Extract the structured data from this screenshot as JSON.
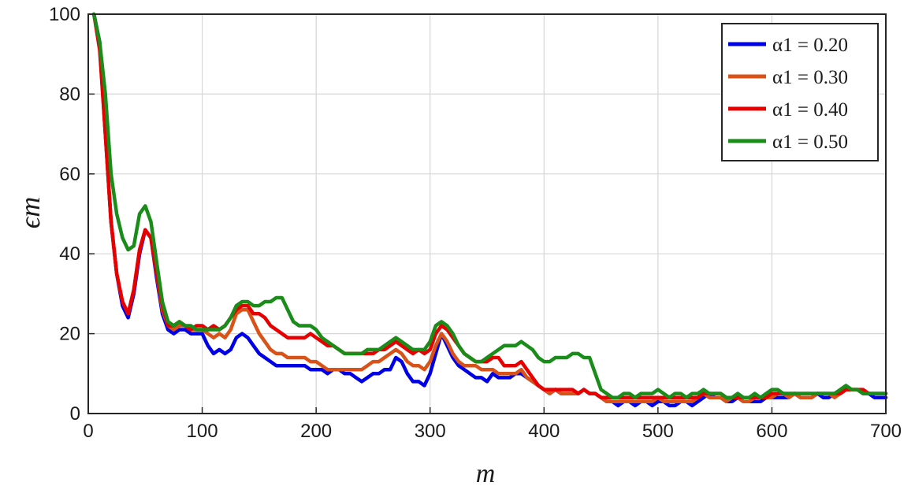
{
  "chart_data": {
    "type": "line",
    "xlabel": "m",
    "ylabel": "ϵm",
    "xlim": [
      0,
      700
    ],
    "ylim": [
      0,
      100
    ],
    "xticks": [
      0,
      100,
      200,
      300,
      400,
      500,
      600,
      700
    ],
    "yticks": [
      0,
      20,
      40,
      60,
      80,
      100
    ],
    "grid": true,
    "legend_position": "top-right",
    "series": [
      {
        "name": "α1 = 0.20",
        "color": "#0000e6",
        "x": [
          5,
          10,
          15,
          20,
          25,
          30,
          35,
          40,
          45,
          50,
          55,
          60,
          65,
          70,
          75,
          80,
          85,
          90,
          95,
          100,
          105,
          110,
          115,
          120,
          125,
          130,
          135,
          140,
          145,
          150,
          155,
          160,
          165,
          170,
          175,
          180,
          185,
          190,
          195,
          200,
          205,
          210,
          215,
          220,
          225,
          230,
          235,
          240,
          245,
          250,
          255,
          260,
          265,
          270,
          275,
          280,
          285,
          290,
          295,
          300,
          305,
          310,
          315,
          320,
          325,
          330,
          335,
          340,
          345,
          350,
          355,
          360,
          365,
          370,
          375,
          380,
          385,
          390,
          395,
          400,
          405,
          410,
          415,
          420,
          425,
          430,
          435,
          440,
          445,
          450,
          455,
          460,
          465,
          470,
          475,
          480,
          485,
          490,
          495,
          500,
          505,
          510,
          515,
          520,
          525,
          530,
          535,
          540,
          545,
          550,
          555,
          560,
          565,
          570,
          575,
          580,
          585,
          590,
          595,
          600,
          605,
          610,
          615,
          620,
          625,
          630,
          635,
          640,
          645,
          650,
          655,
          660,
          665,
          670,
          675,
          680,
          685,
          690,
          695,
          700
        ],
        "values": [
          100,
          93,
          70,
          48,
          35,
          27,
          24,
          30,
          40,
          46,
          44,
          34,
          25,
          21,
          20,
          21,
          21,
          20,
          20,
          20,
          17,
          15,
          16,
          15,
          16,
          19,
          20,
          19,
          17,
          15,
          14,
          13,
          12,
          12,
          12,
          12,
          12,
          12,
          11,
          11,
          11,
          10,
          11,
          11,
          10,
          10,
          9,
          8,
          9,
          10,
          10,
          11,
          11,
          14,
          13,
          10,
          8,
          8,
          7,
          10,
          15,
          20,
          17,
          14,
          12,
          11,
          10,
          9,
          9,
          8,
          10,
          9,
          9,
          9,
          10,
          10,
          9,
          8,
          7,
          6,
          5,
          6,
          5,
          5,
          5,
          5,
          6,
          5,
          5,
          4,
          3,
          3,
          2,
          3,
          3,
          2,
          3,
          3,
          2,
          3,
          3,
          2,
          2,
          3,
          3,
          2,
          3,
          4,
          5,
          4,
          4,
          3,
          3,
          4,
          3,
          3,
          3,
          3,
          4,
          4,
          4,
          4,
          4,
          5,
          4,
          4,
          4,
          5,
          4,
          4,
          5,
          5,
          6,
          6,
          6,
          5,
          5,
          4,
          4,
          4
        ]
      },
      {
        "name": "α1 = 0.30",
        "color": "#d95319",
        "x": [
          5,
          10,
          15,
          20,
          25,
          30,
          35,
          40,
          45,
          50,
          55,
          60,
          65,
          70,
          75,
          80,
          85,
          90,
          95,
          100,
          105,
          110,
          115,
          120,
          125,
          130,
          135,
          140,
          145,
          150,
          155,
          160,
          165,
          170,
          175,
          180,
          185,
          190,
          195,
          200,
          205,
          210,
          215,
          220,
          225,
          230,
          235,
          240,
          245,
          250,
          255,
          260,
          265,
          270,
          275,
          280,
          285,
          290,
          295,
          300,
          305,
          310,
          315,
          320,
          325,
          330,
          335,
          340,
          345,
          350,
          355,
          360,
          365,
          370,
          375,
          380,
          385,
          390,
          395,
          400,
          405,
          410,
          415,
          420,
          425,
          430,
          435,
          440,
          445,
          450,
          455,
          460,
          465,
          470,
          475,
          480,
          485,
          490,
          495,
          500,
          505,
          510,
          515,
          520,
          525,
          530,
          535,
          540,
          545,
          550,
          555,
          560,
          565,
          570,
          575,
          580,
          585,
          590,
          595,
          600,
          605,
          610,
          615,
          620,
          625,
          630,
          635,
          640,
          645,
          650,
          655,
          660,
          665,
          670,
          675,
          680,
          685,
          690,
          695,
          700
        ],
        "values": [
          100,
          92,
          70,
          48,
          35,
          28,
          25,
          31,
          41,
          46,
          44,
          35,
          26,
          22,
          21,
          22,
          22,
          21,
          21,
          21,
          20,
          19,
          20,
          19,
          21,
          25,
          26,
          26,
          23,
          20,
          18,
          16,
          15,
          15,
          14,
          14,
          14,
          14,
          13,
          13,
          12,
          11,
          11,
          11,
          11,
          11,
          11,
          11,
          12,
          13,
          13,
          14,
          15,
          16,
          15,
          13,
          12,
          12,
          11,
          13,
          17,
          20,
          18,
          15,
          13,
          12,
          12,
          12,
          11,
          11,
          11,
          10,
          10,
          10,
          10,
          11,
          9,
          8,
          7,
          6,
          5,
          6,
          5,
          5,
          5,
          5,
          6,
          5,
          5,
          4,
          3,
          3,
          3,
          3,
          3,
          3,
          3,
          3,
          3,
          4,
          3,
          3,
          3,
          3,
          3,
          3,
          4,
          5,
          4,
          4,
          4,
          3,
          4,
          4,
          3,
          3,
          4,
          4,
          4,
          4,
          5,
          5,
          4,
          5,
          4,
          4,
          4,
          5,
          5,
          5,
          4,
          5,
          6,
          6,
          6,
          5,
          5,
          5,
          5,
          5
        ]
      },
      {
        "name": "α1 = 0.40",
        "color": "#e60000",
        "x": [
          5,
          10,
          15,
          20,
          25,
          30,
          35,
          40,
          45,
          50,
          55,
          60,
          65,
          70,
          75,
          80,
          85,
          90,
          95,
          100,
          105,
          110,
          115,
          120,
          125,
          130,
          135,
          140,
          145,
          150,
          155,
          160,
          165,
          170,
          175,
          180,
          185,
          190,
          195,
          200,
          205,
          210,
          215,
          220,
          225,
          230,
          235,
          240,
          245,
          250,
          255,
          260,
          265,
          270,
          275,
          280,
          285,
          290,
          295,
          300,
          305,
          310,
          315,
          320,
          325,
          330,
          335,
          340,
          345,
          350,
          355,
          360,
          365,
          370,
          375,
          380,
          385,
          390,
          395,
          400,
          405,
          410,
          415,
          420,
          425,
          430,
          435,
          440,
          445,
          450,
          455,
          460,
          465,
          470,
          475,
          480,
          485,
          490,
          495,
          500,
          505,
          510,
          515,
          520,
          525,
          530,
          535,
          540,
          545,
          550,
          555,
          560,
          565,
          570,
          575,
          580,
          585,
          590,
          595,
          600,
          605,
          610,
          615,
          620,
          625,
          630,
          635,
          640,
          645,
          650,
          655,
          660,
          665,
          670,
          675,
          680,
          685,
          690,
          695,
          700
        ],
        "values": [
          100,
          91,
          70,
          48,
          35,
          28,
          25,
          31,
          41,
          46,
          44,
          35,
          27,
          22,
          22,
          23,
          22,
          21,
          22,
          22,
          21,
          22,
          21,
          22,
          24,
          26,
          27,
          27,
          25,
          25,
          24,
          22,
          21,
          20,
          19,
          19,
          19,
          19,
          20,
          19,
          18,
          17,
          17,
          16,
          15,
          15,
          15,
          15,
          15,
          15,
          16,
          16,
          17,
          18,
          17,
          16,
          15,
          16,
          15,
          16,
          20,
          22,
          21,
          19,
          17,
          15,
          14,
          13,
          13,
          13,
          14,
          14,
          12,
          12,
          12,
          13,
          11,
          9,
          7,
          6,
          6,
          6,
          6,
          6,
          6,
          5,
          6,
          5,
          5,
          4,
          4,
          4,
          4,
          4,
          4,
          4,
          4,
          4,
          4,
          4,
          4,
          4,
          4,
          4,
          4,
          4,
          4,
          5,
          5,
          5,
          5,
          4,
          4,
          4,
          4,
          4,
          4,
          4,
          4,
          5,
          5,
          5,
          5,
          5,
          5,
          5,
          5,
          5,
          5,
          5,
          5,
          5,
          6,
          6,
          6,
          6,
          5,
          5,
          5,
          5
        ]
      },
      {
        "name": "α1 = 0.50",
        "color": "#1a8c1a",
        "x": [
          5,
          10,
          15,
          20,
          25,
          30,
          35,
          40,
          45,
          50,
          55,
          60,
          65,
          70,
          75,
          80,
          85,
          90,
          95,
          100,
          105,
          110,
          115,
          120,
          125,
          130,
          135,
          140,
          145,
          150,
          155,
          160,
          165,
          170,
          175,
          180,
          185,
          190,
          195,
          200,
          205,
          210,
          215,
          220,
          225,
          230,
          235,
          240,
          245,
          250,
          255,
          260,
          265,
          270,
          275,
          280,
          285,
          290,
          295,
          300,
          305,
          310,
          315,
          320,
          325,
          330,
          335,
          340,
          345,
          350,
          355,
          360,
          365,
          370,
          375,
          380,
          385,
          390,
          395,
          400,
          405,
          410,
          415,
          420,
          425,
          430,
          435,
          440,
          445,
          450,
          455,
          460,
          465,
          470,
          475,
          480,
          485,
          490,
          495,
          500,
          505,
          510,
          515,
          520,
          525,
          530,
          535,
          540,
          545,
          550,
          555,
          560,
          565,
          570,
          575,
          580,
          585,
          590,
          595,
          600,
          605,
          610,
          615,
          620,
          625,
          630,
          635,
          640,
          645,
          650,
          655,
          660,
          665,
          670,
          675,
          680,
          685,
          690,
          695,
          700
        ],
        "values": [
          100,
          93,
          80,
          60,
          50,
          44,
          41,
          42,
          50,
          52,
          48,
          38,
          28,
          23,
          22,
          23,
          22,
          22,
          21,
          21,
          21,
          21,
          21,
          22,
          24,
          27,
          28,
          28,
          27,
          27,
          28,
          28,
          29,
          29,
          26,
          23,
          22,
          22,
          22,
          21,
          19,
          18,
          17,
          16,
          15,
          15,
          15,
          15,
          16,
          16,
          16,
          17,
          18,
          19,
          18,
          17,
          16,
          16,
          16,
          18,
          22,
          23,
          22,
          20,
          17,
          15,
          14,
          13,
          13,
          14,
          15,
          16,
          17,
          17,
          17,
          18,
          17,
          16,
          14,
          13,
          13,
          14,
          14,
          14,
          15,
          15,
          14,
          14,
          10,
          6,
          5,
          4,
          4,
          5,
          5,
          4,
          5,
          5,
          5,
          6,
          5,
          4,
          5,
          5,
          4,
          5,
          5,
          6,
          5,
          5,
          5,
          4,
          4,
          5,
          4,
          4,
          5,
          4,
          5,
          6,
          6,
          5,
          5,
          5,
          5,
          5,
          5,
          5,
          5,
          5,
          5,
          6,
          7,
          6,
          6,
          5,
          5,
          5,
          5,
          5
        ]
      }
    ]
  }
}
